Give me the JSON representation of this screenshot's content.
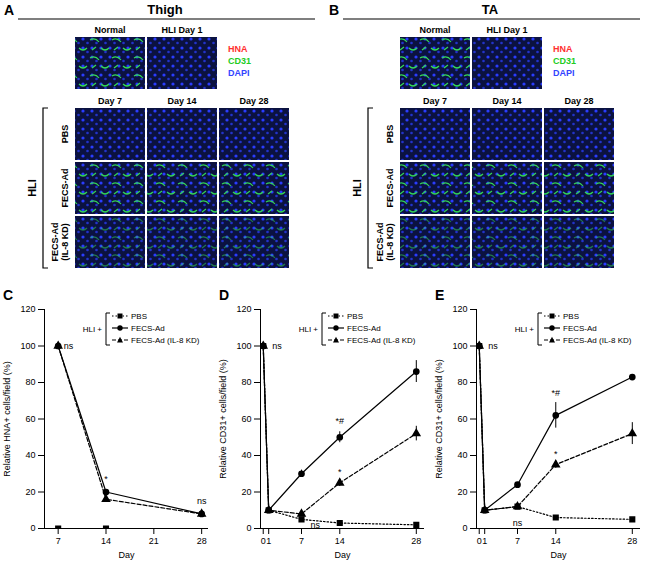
{
  "panels": [
    {
      "letter": "A",
      "title": "Thigh",
      "top_columns": [
        "Normal",
        "HLI Day 1"
      ],
      "stains": [
        {
          "name": "HNA",
          "color": "#ff3030"
        },
        {
          "name": "CD31",
          "color": "#22cc22"
        },
        {
          "name": "DAPI",
          "color": "#3344ff"
        }
      ],
      "columns": [
        "Day 7",
        "Day 14",
        "Day 28"
      ],
      "group": "HLI",
      "rows": [
        "PBS",
        "FECS-Ad",
        "FECS-Ad (IL-8 KD)"
      ]
    },
    {
      "letter": "B",
      "title": "TA",
      "top_columns": [
        "Normal",
        "HLI Day 1"
      ],
      "stains": [
        {
          "name": "HNA",
          "color": "#ff3030"
        },
        {
          "name": "CD31",
          "color": "#22cc22"
        },
        {
          "name": "DAPI",
          "color": "#3344ff"
        }
      ],
      "columns": [
        "Day 7",
        "Day 14",
        "Day 28"
      ],
      "group": "HLI",
      "rows": [
        "PBS",
        "FECS-Ad",
        "FECS-Ad (IL-8 KD)"
      ]
    }
  ],
  "chart_data": [
    {
      "type": "line",
      "panel": "C",
      "x_label": "Day",
      "y_label": "Relative HNA+ cells/field (%)",
      "x": [
        7,
        14,
        28
      ],
      "xlim": [
        5,
        29
      ],
      "xticks": [
        7,
        14,
        21,
        28
      ],
      "ylim": [
        0,
        120
      ],
      "yticks": [
        0,
        20,
        40,
        60,
        80,
        100,
        120
      ],
      "legend": "top-right",
      "legend_title": "HLI +",
      "series": [
        {
          "name": "PBS",
          "color": "#000000",
          "marker": "square",
          "line_style": "dotted",
          "values": [
            0,
            0,
            null
          ]
        },
        {
          "name": "FECS-Ad",
          "color": "#000000",
          "marker": "circle",
          "line_style": "solid",
          "values": [
            100,
            20,
            8
          ]
        },
        {
          "name": "FECS-Ad (IL-8 KD)",
          "color": "#000000",
          "marker": "triangle",
          "line_style": "dashed",
          "values": [
            100,
            16,
            8
          ]
        }
      ],
      "annotations": [
        {
          "x": 8.5,
          "y": 100,
          "text": "ns"
        },
        {
          "x": 14,
          "y": 27,
          "text": "*"
        },
        {
          "x": 28,
          "y": 15,
          "text": "ns"
        }
      ]
    },
    {
      "type": "line",
      "panel": "D",
      "x_label": "Day",
      "y_label": "Relative CD31+ cells/field (%)",
      "x": [
        0,
        1,
        7,
        14,
        28
      ],
      "xlim": [
        -0.5,
        29.5
      ],
      "xticks": [
        0,
        1,
        7,
        14,
        28
      ],
      "ylim": [
        0,
        120
      ],
      "yticks": [
        0,
        20,
        40,
        60,
        80,
        100,
        120
      ],
      "legend": "top-right",
      "legend_title": "HLI +",
      "series": [
        {
          "name": "PBS",
          "color": "#000000",
          "marker": "square",
          "line_style": "dotted",
          "values": [
            100,
            10,
            5,
            3,
            2
          ],
          "errors": [
            0,
            0,
            0,
            0,
            0
          ]
        },
        {
          "name": "FECS-Ad",
          "color": "#000000",
          "marker": "circle",
          "line_style": "solid",
          "values": [
            100,
            10,
            30,
            50,
            86
          ],
          "errors": [
            0,
            0,
            2,
            3,
            6
          ]
        },
        {
          "name": "FECS-Ad (IL-8 KD)",
          "color": "#000000",
          "marker": "triangle",
          "line_style": "dashed",
          "values": [
            100,
            10,
            8,
            25,
            52
          ],
          "errors": [
            0,
            0,
            1,
            2,
            4
          ]
        }
      ],
      "annotations": [
        {
          "x": 2.5,
          "y": 100,
          "text": "ns"
        },
        {
          "x": 9.5,
          "y": 2,
          "text": "ns"
        },
        {
          "x": 14,
          "y": 59,
          "text": "*#"
        },
        {
          "x": 14,
          "y": 31,
          "text": "*"
        }
      ]
    },
    {
      "type": "line",
      "panel": "E",
      "x_label": "Day",
      "y_label": "Relative CD31+ cells/field (%)",
      "x": [
        0,
        1,
        7,
        14,
        28
      ],
      "xlim": [
        -0.5,
        29.5
      ],
      "xticks": [
        0,
        1,
        7,
        14,
        28
      ],
      "ylim": [
        0,
        120
      ],
      "yticks": [
        0,
        20,
        40,
        60,
        80,
        100,
        120
      ],
      "legend": "top-right",
      "legend_title": "HLI +",
      "series": [
        {
          "name": "PBS",
          "color": "#000000",
          "marker": "square",
          "line_style": "dotted",
          "values": [
            100,
            10,
            12,
            6,
            5
          ],
          "errors": [
            0,
            0,
            0,
            0,
            0
          ]
        },
        {
          "name": "FECS-Ad",
          "color": "#000000",
          "marker": "circle",
          "line_style": "solid",
          "values": [
            100,
            10,
            24,
            62,
            83
          ],
          "errors": [
            0,
            0,
            1,
            7,
            1
          ]
        },
        {
          "name": "FECS-Ad (IL-8 KD)",
          "color": "#000000",
          "marker": "triangle",
          "line_style": "dashed",
          "values": [
            100,
            10,
            12,
            35,
            52
          ],
          "errors": [
            0,
            0,
            1,
            2,
            6
          ]
        }
      ],
      "annotations": [
        {
          "x": 2.5,
          "y": 100,
          "text": "ns"
        },
        {
          "x": 7,
          "y": 3,
          "text": "ns"
        },
        {
          "x": 14,
          "y": 74,
          "text": "*#"
        },
        {
          "x": 14,
          "y": 41,
          "text": "*"
        }
      ]
    }
  ]
}
